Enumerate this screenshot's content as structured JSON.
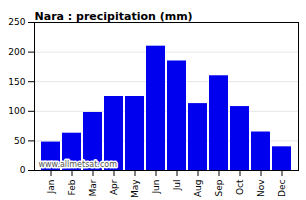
{
  "chart_data": {
    "type": "bar",
    "title": "Nara : precipitation (mm)",
    "categories": [
      "Jan",
      "Feb",
      "Mar",
      "Apr",
      "May",
      "Jun",
      "Jul",
      "Aug",
      "Sep",
      "Oct",
      "Nov",
      "Dec"
    ],
    "values": [
      48,
      63,
      98,
      125,
      125,
      210,
      185,
      113,
      160,
      108,
      65,
      40
    ],
    "color": "#0000ee",
    "ylim": [
      0,
      250
    ],
    "yticks": [
      0,
      50,
      100,
      150,
      200,
      250
    ],
    "grid": true,
    "annotations": [
      "www.allmetsat.com"
    ]
  }
}
